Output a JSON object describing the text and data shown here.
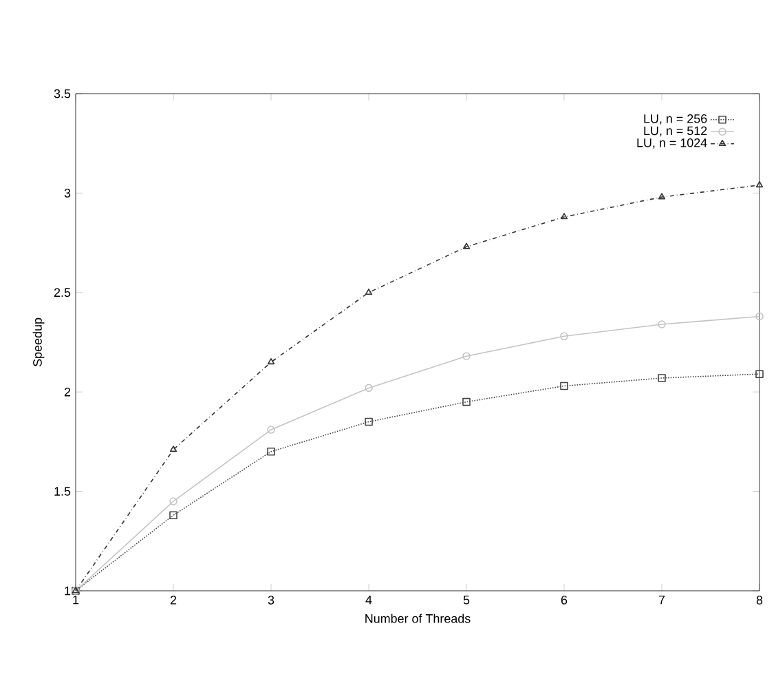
{
  "chart_data": {
    "type": "line",
    "xlabel": "Number of Threads",
    "ylabel": "Speedup",
    "x": [
      1,
      2,
      3,
      4,
      5,
      6,
      7,
      8
    ],
    "series": [
      {
        "name": "LU, n = 256",
        "color": "#444444",
        "marker": "square",
        "line_style": "dotted",
        "values": [
          1,
          1.38,
          1.7,
          1.85,
          1.95,
          2.03,
          2.07,
          2.09
        ]
      },
      {
        "name": "LU, n = 512",
        "color": "#c4c4c4",
        "marker": "circle",
        "line_style": "solid",
        "values": [
          1,
          1.45,
          1.81,
          2.02,
          2.18,
          2.28,
          2.34,
          2.38
        ]
      },
      {
        "name": "LU, n = 1024",
        "color": "#333333",
        "marker": "triangle",
        "line_style": "dashed",
        "values": [
          1,
          1.71,
          2.15,
          2.5,
          2.73,
          2.88,
          2.98,
          3.04
        ]
      }
    ],
    "xlim": [
      1,
      8
    ],
    "xticks": [
      1,
      2,
      3,
      4,
      5,
      6,
      7,
      8
    ],
    "ylim": [
      1,
      3.5
    ],
    "yticks": [
      1,
      1.5,
      2,
      2.5,
      3,
      3.5
    ],
    "grid": false,
    "legend": "top right"
  }
}
